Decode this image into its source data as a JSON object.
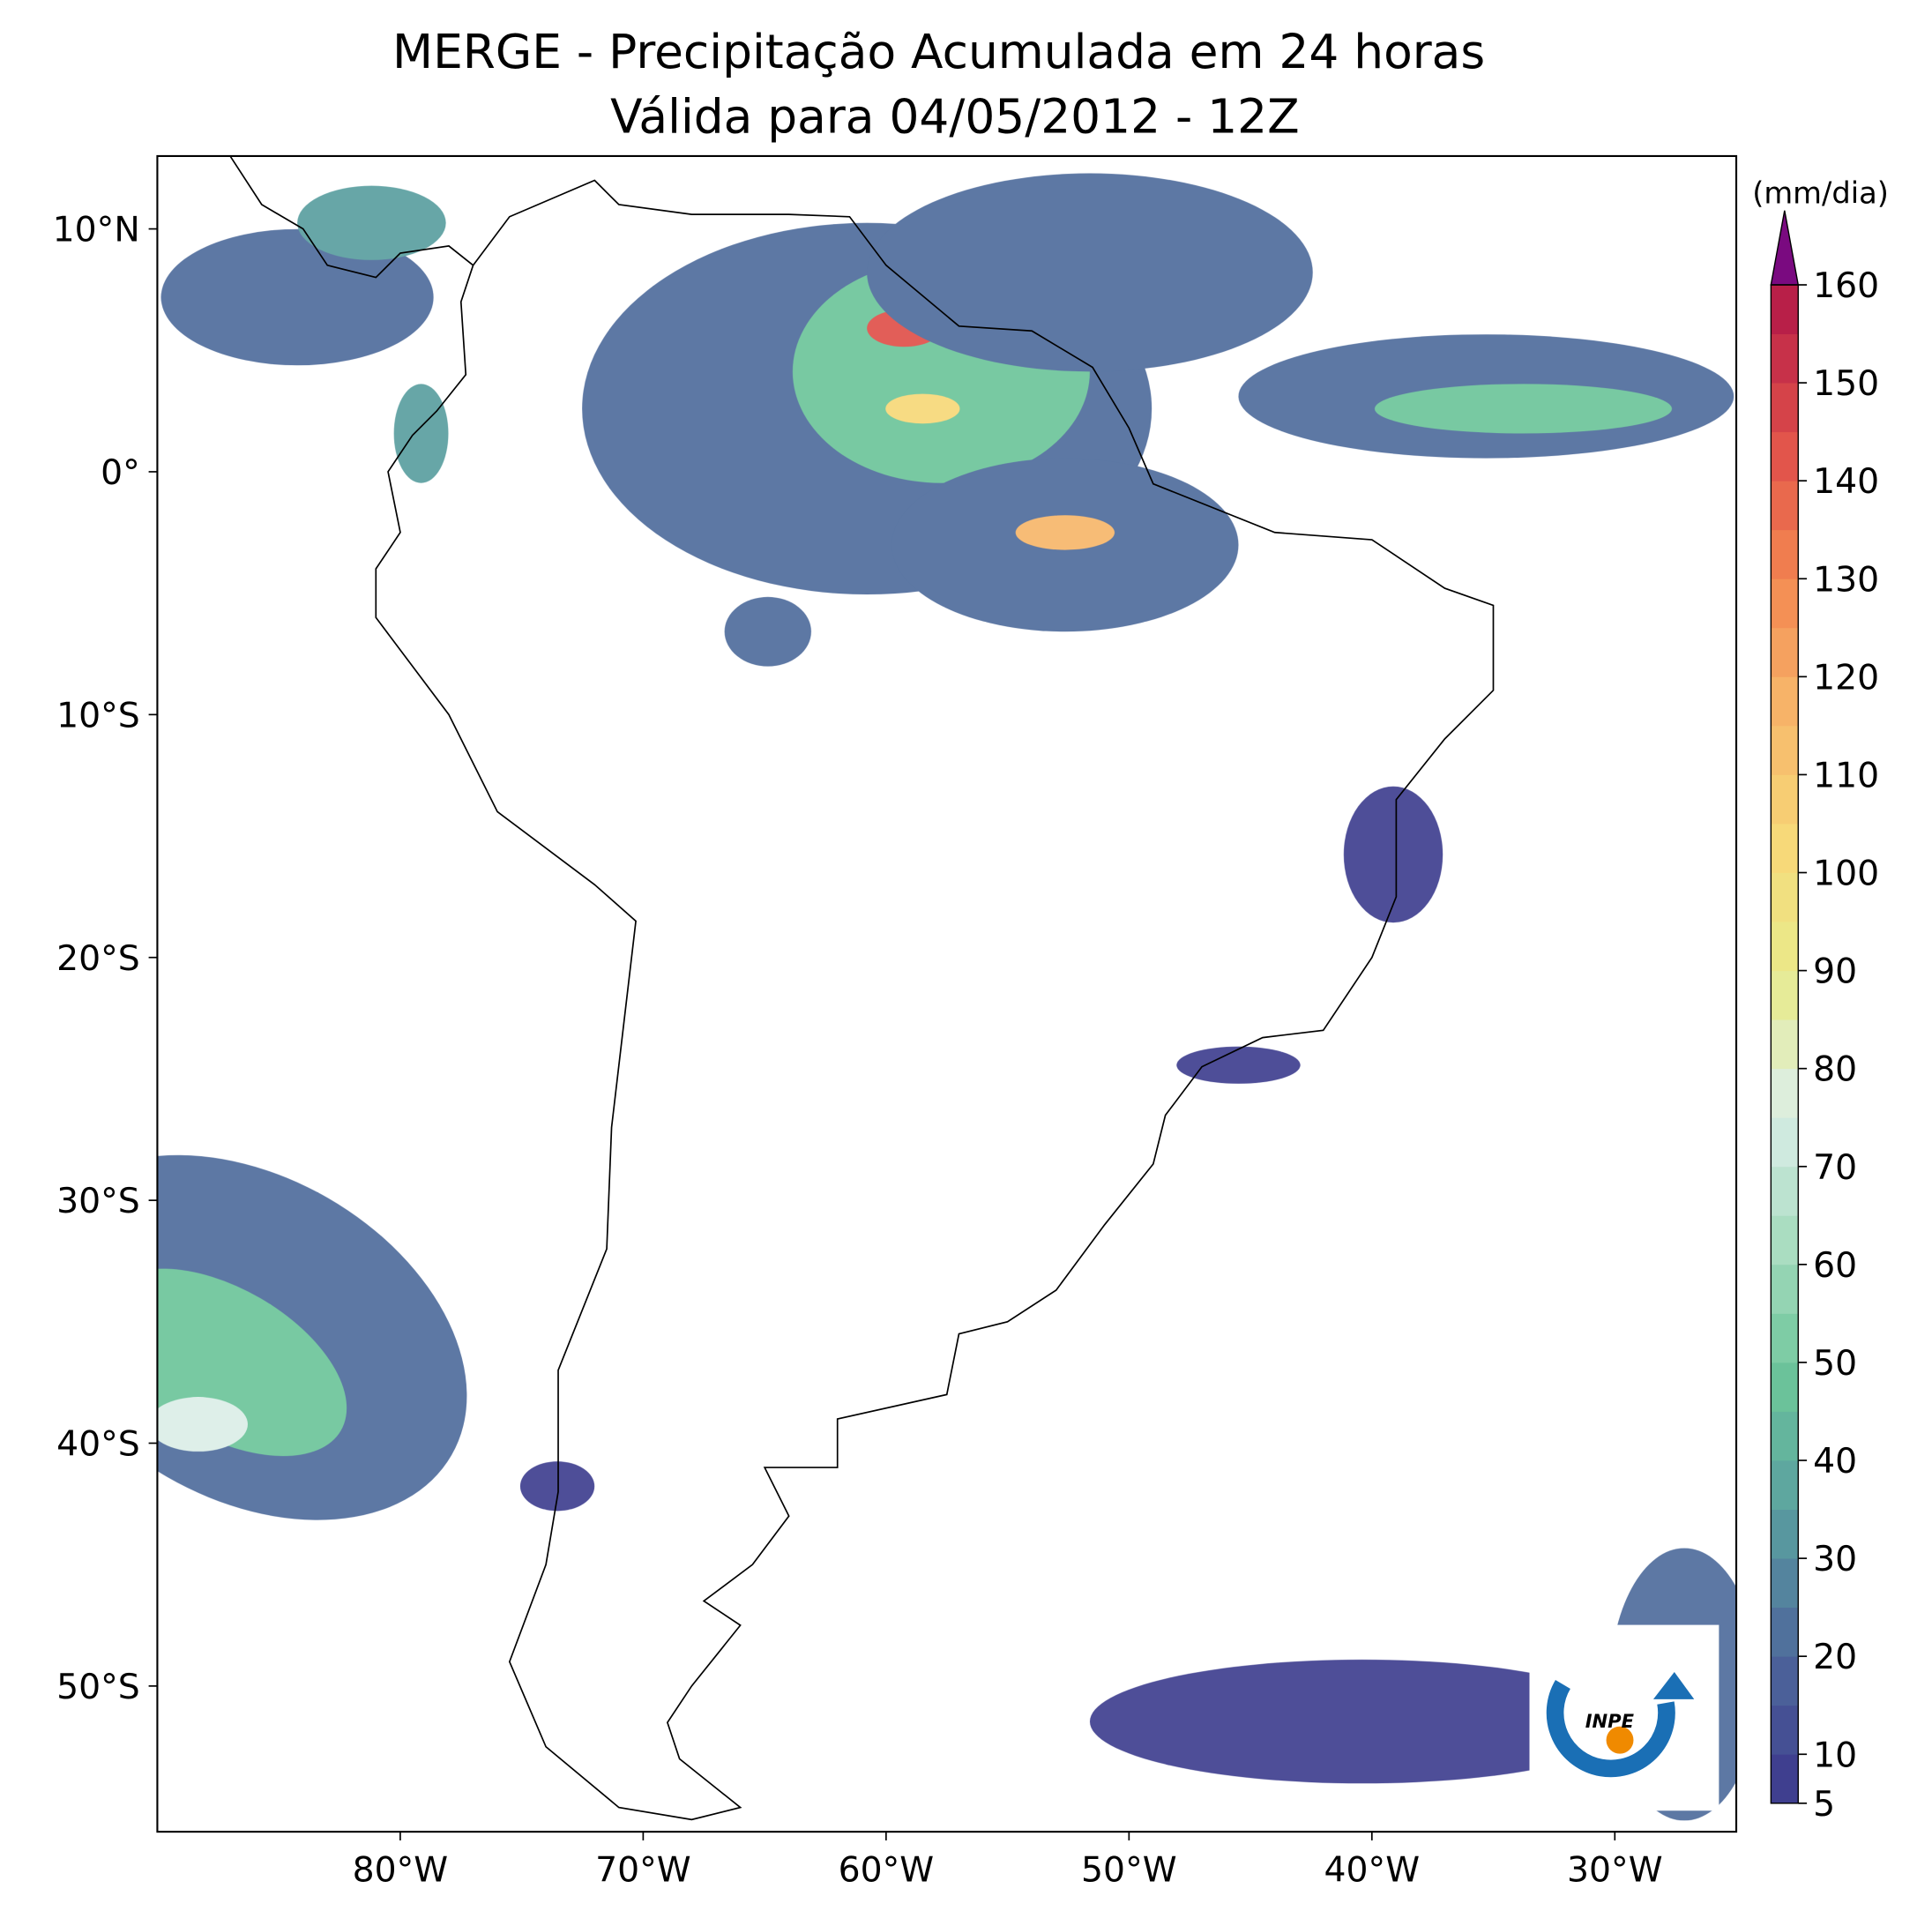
{
  "title": "MERGE - Precipitação Acumulada em 24 horas",
  "subtitle": "Válida para 04/05/2012 - 12Z",
  "map": {
    "lonlim": [
      -90,
      -25
    ],
    "latlim": [
      -56,
      13
    ],
    "lon_ticks": [
      {
        "value": -80,
        "label": "80°W"
      },
      {
        "value": -70,
        "label": "70°W"
      },
      {
        "value": -60,
        "label": "60°W"
      },
      {
        "value": -50,
        "label": "50°W"
      },
      {
        "value": -40,
        "label": "40°W"
      },
      {
        "value": -30,
        "label": "30°W"
      }
    ],
    "lat_ticks": [
      {
        "value": 10,
        "label": "10°N"
      },
      {
        "value": 0,
        "label": "0°"
      },
      {
        "value": -10,
        "label": "10°S"
      },
      {
        "value": -20,
        "label": "20°S"
      },
      {
        "value": -30,
        "label": "30°S"
      },
      {
        "value": -40,
        "label": "40°S"
      },
      {
        "value": -50,
        "label": "50°S"
      }
    ]
  },
  "colorbar": {
    "unit": "(mm/dia)",
    "lim": [
      5,
      160
    ],
    "ticks": [
      5,
      10,
      20,
      30,
      40,
      50,
      60,
      70,
      80,
      90,
      100,
      110,
      120,
      130,
      140,
      150,
      160
    ],
    "colors": [
      "#3f3f8f",
      "#4f6c9c",
      "#5a9fa0",
      "#6cc59a",
      "#a8dcc0",
      "#dbeee8",
      "#e8eb8c",
      "#f7d878",
      "#f7b66a",
      "#f38650",
      "#e0504a",
      "#b81f48"
    ],
    "over_color": "#7a0a80"
  },
  "logo": "INPE"
}
